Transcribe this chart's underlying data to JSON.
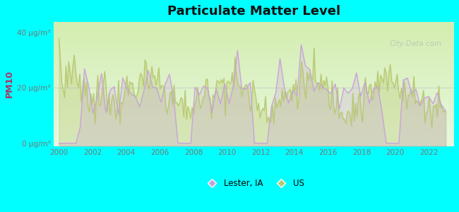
{
  "title": "Particulate Matter Level",
  "ylabel": "PM10",
  "ytick_labels": [
    "0 μg/m³",
    "20 μg/m³",
    "40 μg/m³"
  ],
  "ytick_values": [
    0,
    20,
    40
  ],
  "ylim": [
    -1,
    44
  ],
  "xlim": [
    1999.7,
    2023.5
  ],
  "xtick_values": [
    2000,
    2002,
    2004,
    2006,
    2008,
    2010,
    2012,
    2014,
    2016,
    2018,
    2020,
    2022
  ],
  "background_color": "#00FFFF",
  "plot_bg_top": "#d4edb0",
  "plot_bg_bottom": "#e8f8e0",
  "lester_color": "#c9a0dc",
  "us_color": "#b8c870",
  "lester_label": "Lester, IA",
  "us_label": "US",
  "watermark": "City-Data.com",
  "tick_color": "#777777",
  "ylabel_color": "#aa3366",
  "title_color": "#111111"
}
